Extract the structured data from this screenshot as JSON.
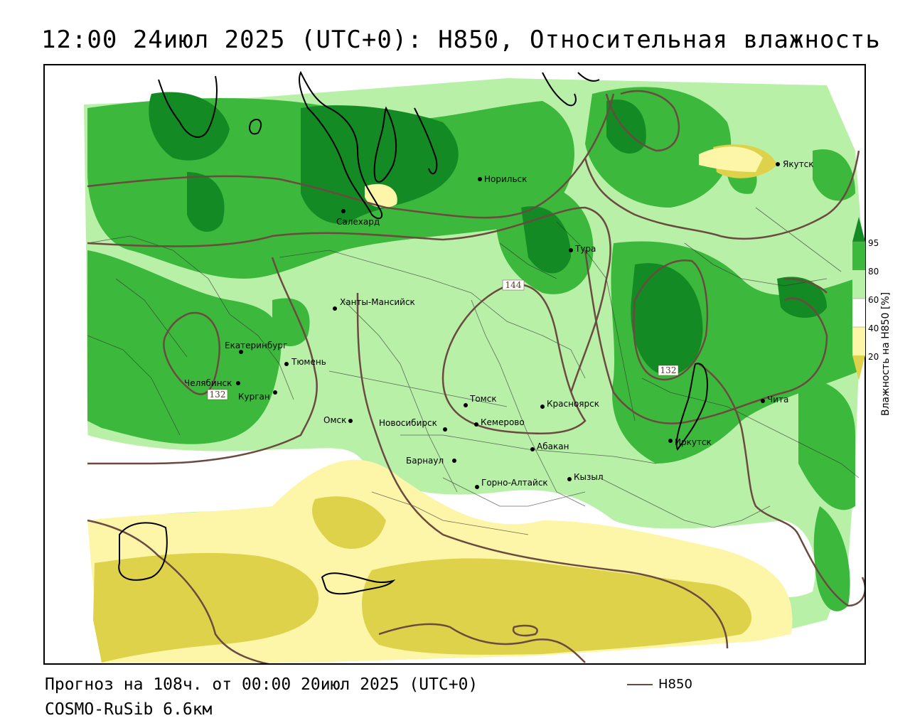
{
  "title": "12:00 24июл 2025 (UTC+0): H850, Относительная влажность",
  "footer": {
    "forecast": "Прогноз на 108ч. от 00:00 20июл 2025 (UTC+0)",
    "model": "COSMO-RuSib 6.6км"
  },
  "legend": {
    "line_label": "H850",
    "line_color": "#6b4a40"
  },
  "colorbar": {
    "title": "Влажность на H850 [%]",
    "ticks": [
      "95",
      "80",
      "60",
      "40",
      "20"
    ],
    "colors": {
      "gt95": "#138a24",
      "c80_95": "#3cb93c",
      "c60_80": "#b8f0a8",
      "c40_60": "#ffffff",
      "c20_40": "#fdf6a8",
      "lt20": "#ddd24a"
    }
  },
  "contour_labels": [
    "144",
    "132",
    "132"
  ],
  "cities": [
    "Якутск",
    "Норильск",
    "Салехард",
    "Тура",
    "Ханты-Мансийск",
    "Екатеринбург",
    "Тюмень",
    "Челябинск",
    "Курган",
    "Омск",
    "Новосибирск",
    "Томск",
    "Кемерово",
    "Красноярск",
    "Барнаул",
    "Абакан",
    "Горно-Алтайск",
    "Кызыл",
    "Иркутск",
    "Чита"
  ]
}
